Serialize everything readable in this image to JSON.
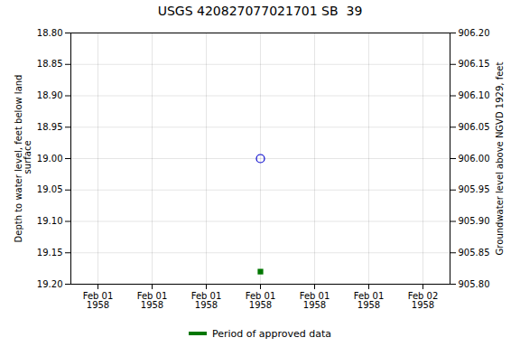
{
  "chart_data": {
    "type": "scatter",
    "title": "USGS 420827077021701 SB  39",
    "y_label": "Depth to water level, feet below land\n surface",
    "y2_label": "Groundwater level above NGVD 1929, feet",
    "categories": [
      "Feb 01\n1958",
      "Feb 01\n1958",
      "Feb 01\n1958",
      "Feb 01\n1958",
      "Feb 01\n1958",
      "Feb 01\n1958",
      "Feb 02\n1958"
    ],
    "ylim": [
      19.2,
      18.8
    ],
    "yticks": [
      {
        "value": 18.8,
        "label": "18.80"
      },
      18.85,
      {
        "value": 18.9,
        "label": "18.90"
      },
      18.95,
      {
        "value": 19.0,
        "label": "19.00"
      },
      19.05,
      {
        "value": 19.1,
        "label": "19.10"
      },
      19.15,
      {
        "value": 19.2,
        "label": "19.20"
      }
    ],
    "y2lim": [
      905.8,
      906.2
    ],
    "y2ticks": [
      {
        "value": 906.2,
        "label": "906.20"
      },
      906.15,
      {
        "value": 906.1,
        "label": "906.10"
      },
      906.05,
      {
        "value": 906.0,
        "label": "906.00"
      },
      905.95,
      {
        "value": 905.9,
        "label": "905.90"
      },
      905.85,
      {
        "value": 905.8,
        "label": "905.80"
      }
    ],
    "series": [
      {
        "color": "#0000cc",
        "marker": "circle-open",
        "values": [
          null,
          null,
          null,
          19.0,
          null,
          null,
          null
        ]
      },
      {
        "name": "Period of approved data",
        "color": "#007700",
        "marker": "square",
        "values": [
          null,
          null,
          null,
          19.18,
          null,
          null,
          null
        ]
      }
    ],
    "grid": true,
    "legend": "bottom"
  }
}
